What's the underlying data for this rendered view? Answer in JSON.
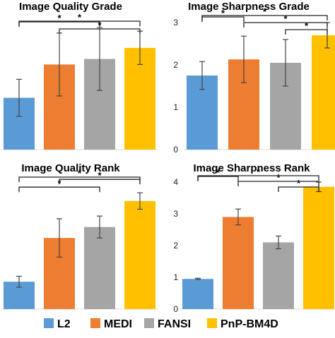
{
  "legend": {
    "entries": [
      {
        "label": "L2",
        "color": "#5b9bd5"
      },
      {
        "label": "MEDI",
        "color": "#ed7d31"
      },
      {
        "label": "FANSI",
        "color": "#a5a5a5"
      },
      {
        "label": "PnP-BM4D",
        "color": "#ffc000"
      }
    ]
  },
  "chart_data": [
    {
      "type": "bar",
      "title": "Image Quality Grade",
      "categories": [
        "L2",
        "MEDI",
        "FANSI",
        "PnP-BM4D"
      ],
      "values": [
        1.4,
        2.3,
        2.45,
        2.75
      ],
      "errors": [
        0.5,
        0.85,
        0.85,
        0.45
      ],
      "colors": [
        "#5b9bd5",
        "#ed7d31",
        "#a5a5a5",
        "#ffc000"
      ],
      "ylim": [
        0,
        3.7
      ],
      "yticks": [],
      "brackets": [
        {
          "from": 0,
          "to": 3,
          "label": "*"
        },
        {
          "from": 0,
          "to": 2,
          "label": "*"
        },
        {
          "from": 1,
          "to": 3,
          "label": "*"
        }
      ]
    },
    {
      "type": "bar",
      "title": "Image Sharpness Grade",
      "categories": [
        "L2",
        "MEDI",
        "FANSI",
        "PnP-BM4D"
      ],
      "values": [
        1.75,
        2.13,
        2.05,
        2.7
      ],
      "errors": [
        0.33,
        0.55,
        0.55,
        0.3
      ],
      "colors": [
        "#5b9bd5",
        "#ed7d31",
        "#a5a5a5",
        "#ffc000"
      ],
      "ylim": [
        0,
        3
      ],
      "yticks": [
        "0",
        "1",
        "2",
        "3"
      ],
      "brackets": [
        {
          "from": 0,
          "to": 1,
          "label": "*"
        },
        {
          "from": 1,
          "to": 3,
          "label": "*"
        },
        {
          "from": 0,
          "to": 3,
          "label": "*"
        },
        {
          "from": 2,
          "to": 3,
          "label": "*"
        }
      ]
    },
    {
      "type": "bar",
      "title": "Image Quality Rank",
      "categories": [
        "L2",
        "MEDI",
        "FANSI",
        "PnP-BM4D"
      ],
      "values": [
        1.0,
        2.6,
        3.0,
        3.95
      ],
      "errors": [
        0.2,
        0.7,
        0.4,
        0.3
      ],
      "colors": [
        "#5b9bd5",
        "#ed7d31",
        "#a5a5a5",
        "#ffc000"
      ],
      "ylim": [
        0,
        4.9
      ],
      "yticks": [],
      "brackets": [
        {
          "from": 0,
          "to": 2,
          "label": "*"
        },
        {
          "from": 1,
          "to": 3,
          "label": "*"
        },
        {
          "from": 0,
          "to": 3,
          "label": "*"
        }
      ]
    },
    {
      "type": "bar",
      "title": "Image Sharpness Rank",
      "categories": [
        "L2",
        "MEDI",
        "FANSI",
        "PnP-BM4D"
      ],
      "values": [
        0.95,
        2.9,
        2.1,
        3.85
      ],
      "errors": [
        0.02,
        0.25,
        0.2,
        0.15
      ],
      "colors": [
        "#5b9bd5",
        "#ed7d31",
        "#a5a5a5",
        "#ffc000"
      ],
      "ylim": [
        0,
        4
      ],
      "yticks": [
        "0",
        "1",
        "2",
        "3",
        "4"
      ],
      "brackets": [
        {
          "from": 0,
          "to": 1,
          "label": "*"
        },
        {
          "from": 1,
          "to": 3,
          "label": "*"
        },
        {
          "from": 2,
          "to": 3,
          "label": "*"
        },
        {
          "from": 0,
          "to": 3,
          "label": "*"
        }
      ]
    }
  ]
}
